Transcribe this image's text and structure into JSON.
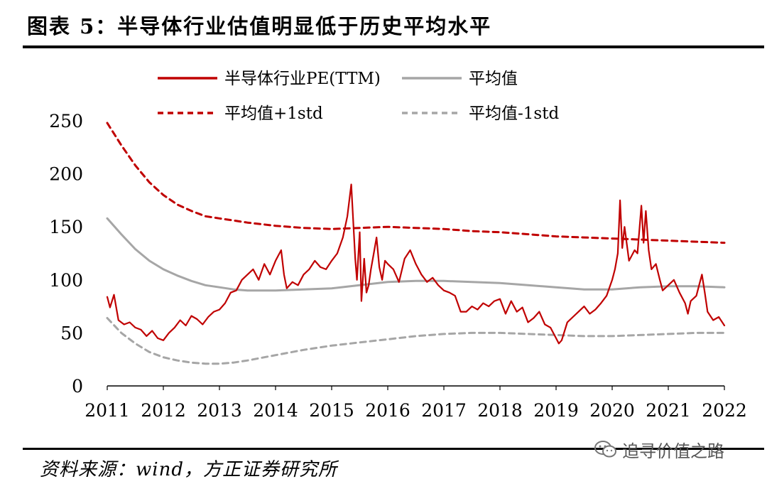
{
  "figure": {
    "title": "图表 5：半导体行业估值明显低于历史平均水平",
    "source": "资料来源：wind，方正证券研究所",
    "watermark": "追寻价值之路",
    "watermark_icon": "wechat-icon"
  },
  "colors": {
    "pe": "#c00000",
    "mean": "#a6a6a6",
    "upper": "#c00000",
    "lower": "#a6a6a6"
  },
  "chart_data": {
    "type": "line",
    "title": "",
    "xlabel": "",
    "ylabel": "",
    "xlim": [
      2011,
      2022
    ],
    "ylim": [
      0,
      250
    ],
    "x_ticks": [
      "2011",
      "2012",
      "2013",
      "2014",
      "2015",
      "2016",
      "2017",
      "2018",
      "2019",
      "2020",
      "2021",
      "2022"
    ],
    "y_ticks": [
      "0",
      "50",
      "100",
      "150",
      "200",
      "250"
    ],
    "grid": false,
    "legend_position": "top",
    "series": [
      {
        "name": "半导体行业PE(TTM)",
        "style": "solid",
        "x": [
          2011.0,
          2011.05,
          2011.12,
          2011.2,
          2011.3,
          2011.4,
          2011.5,
          2011.6,
          2011.7,
          2011.8,
          2011.9,
          2012.0,
          2012.1,
          2012.2,
          2012.3,
          2012.4,
          2012.5,
          2012.6,
          2012.7,
          2012.8,
          2012.9,
          2013.0,
          2013.1,
          2013.2,
          2013.3,
          2013.4,
          2013.5,
          2013.6,
          2013.7,
          2013.8,
          2013.9,
          2014.0,
          2014.1,
          2014.15,
          2014.2,
          2014.3,
          2014.4,
          2014.5,
          2014.6,
          2014.7,
          2014.8,
          2014.9,
          2015.0,
          2015.1,
          2015.2,
          2015.28,
          2015.35,
          2015.42,
          2015.45,
          2015.5,
          2015.53,
          2015.58,
          2015.62,
          2015.66,
          2015.7,
          2015.75,
          2015.8,
          2015.85,
          2015.9,
          2015.95,
          2016.0,
          2016.1,
          2016.2,
          2016.3,
          2016.4,
          2016.5,
          2016.6,
          2016.7,
          2016.8,
          2016.9,
          2017.0,
          2017.1,
          2017.2,
          2017.3,
          2017.4,
          2017.5,
          2017.6,
          2017.7,
          2017.8,
          2017.9,
          2018.0,
          2018.1,
          2018.2,
          2018.3,
          2018.4,
          2018.5,
          2018.6,
          2018.7,
          2018.8,
          2018.9,
          2019.0,
          2019.05,
          2019.1,
          2019.2,
          2019.3,
          2019.4,
          2019.5,
          2019.6,
          2019.7,
          2019.8,
          2019.9,
          2020.0,
          2020.05,
          2020.1,
          2020.14,
          2020.18,
          2020.22,
          2020.3,
          2020.4,
          2020.45,
          2020.52,
          2020.56,
          2020.6,
          2020.65,
          2020.7,
          2020.78,
          2020.85,
          2020.9,
          2021.0,
          2021.1,
          2021.2,
          2021.3,
          2021.35,
          2021.4,
          2021.5,
          2021.55,
          2021.6,
          2021.65,
          2021.7,
          2021.8,
          2021.9,
          2022.0
        ],
        "values": [
          84,
          74,
          86,
          62,
          58,
          60,
          55,
          53,
          47,
          52,
          45,
          43,
          50,
          55,
          62,
          57,
          66,
          63,
          58,
          65,
          70,
          72,
          78,
          88,
          90,
          100,
          105,
          110,
          100,
          115,
          105,
          118,
          128,
          105,
          92,
          98,
          95,
          105,
          110,
          118,
          112,
          110,
          118,
          125,
          140,
          160,
          190,
          120,
          100,
          145,
          80,
          120,
          88,
          95,
          110,
          125,
          140,
          112,
          100,
          118,
          115,
          110,
          98,
          120,
          128,
          115,
          105,
          98,
          102,
          95,
          90,
          88,
          85,
          70,
          70,
          75,
          72,
          78,
          75,
          80,
          82,
          68,
          80,
          70,
          74,
          60,
          64,
          70,
          58,
          55,
          45,
          40,
          43,
          60,
          65,
          70,
          75,
          68,
          72,
          78,
          85,
          100,
          110,
          125,
          175,
          130,
          150,
          118,
          128,
          125,
          170,
          135,
          165,
          128,
          110,
          115,
          100,
          90,
          95,
          100,
          88,
          78,
          68,
          80,
          85,
          95,
          105,
          88,
          70,
          62,
          65,
          57
        ]
      },
      {
        "name": "平均值",
        "style": "solid",
        "x": [
          2011.0,
          2011.25,
          2011.5,
          2011.75,
          2012.0,
          2012.25,
          2012.5,
          2012.75,
          2013.0,
          2013.25,
          2013.5,
          2014.0,
          2014.5,
          2015.0,
          2015.5,
          2016.0,
          2016.5,
          2017.0,
          2017.5,
          2018.0,
          2018.5,
          2019.0,
          2019.5,
          2020.0,
          2020.5,
          2021.0,
          2021.5,
          2022.0
        ],
        "values": [
          158,
          143,
          129,
          118,
          110,
          104,
          99,
          95,
          93,
          91,
          90,
          90,
          91,
          92,
          95,
          98,
          99,
          99,
          98,
          97,
          95,
          93,
          91,
          91,
          93,
          94,
          94,
          93
        ]
      },
      {
        "name": "平均值+1std",
        "style": "dashed",
        "x": [
          2011.0,
          2011.25,
          2011.5,
          2011.75,
          2012.0,
          2012.25,
          2012.5,
          2012.75,
          2013.0,
          2013.25,
          2013.5,
          2014.0,
          2014.5,
          2015.0,
          2015.5,
          2016.0,
          2016.5,
          2017.0,
          2017.5,
          2018.0,
          2018.5,
          2019.0,
          2019.5,
          2020.0,
          2020.5,
          2021.0,
          2021.5,
          2022.0
        ],
        "values": [
          248,
          227,
          208,
          192,
          180,
          171,
          165,
          160,
          158,
          156,
          154,
          151,
          149,
          148,
          149,
          150,
          149,
          148,
          146,
          145,
          143,
          141,
          140,
          139,
          138,
          137,
          136,
          135
        ]
      },
      {
        "name": "平均值-1std",
        "style": "dashed",
        "x": [
          2011.0,
          2011.25,
          2011.5,
          2011.75,
          2012.0,
          2012.25,
          2012.5,
          2012.75,
          2013.0,
          2013.25,
          2013.5,
          2014.0,
          2014.5,
          2015.0,
          2015.5,
          2016.0,
          2016.5,
          2017.0,
          2017.5,
          2018.0,
          2018.5,
          2019.0,
          2019.5,
          2020.0,
          2020.5,
          2021.0,
          2021.5,
          2022.0
        ],
        "values": [
          64,
          50,
          40,
          32,
          27,
          24,
          22,
          21,
          21,
          22,
          24,
          29,
          34,
          38,
          41,
          44,
          47,
          49,
          50,
          50,
          49,
          48,
          47,
          47,
          48,
          49,
          50,
          50
        ]
      }
    ]
  }
}
